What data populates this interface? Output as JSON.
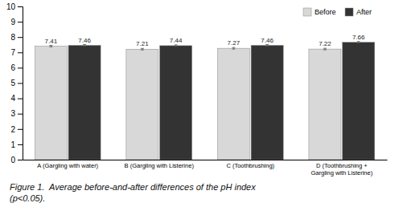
{
  "chart_data": {
    "type": "bar",
    "categories": [
      "A (Gargling with water)",
      "B (Gargling with Listerine)",
      "C (Toothbrushing)",
      "D (Toothbrushing +\nGargling with Listerine)"
    ],
    "series": [
      {
        "name": "Before",
        "color": "#d8d8d8",
        "values": [
          7.41,
          7.21,
          7.27,
          7.22
        ],
        "errors": [
          0.05,
          0.05,
          0.05,
          0.05
        ]
      },
      {
        "name": "After",
        "color": "#333333",
        "values": [
          7.46,
          7.44,
          7.46,
          7.66
        ],
        "errors": [
          0.05,
          0.05,
          0.05,
          0.05
        ]
      }
    ],
    "ylim": [
      0,
      10
    ],
    "yticks": [
      0,
      1,
      2,
      3,
      4,
      5,
      6,
      7,
      8,
      9,
      10
    ],
    "data_labels": true,
    "legend": "upper right",
    "grid": false,
    "annotations": [
      "Figure 1.  Average before-and-after differences of the pH index",
      "(p<0.05)."
    ]
  }
}
